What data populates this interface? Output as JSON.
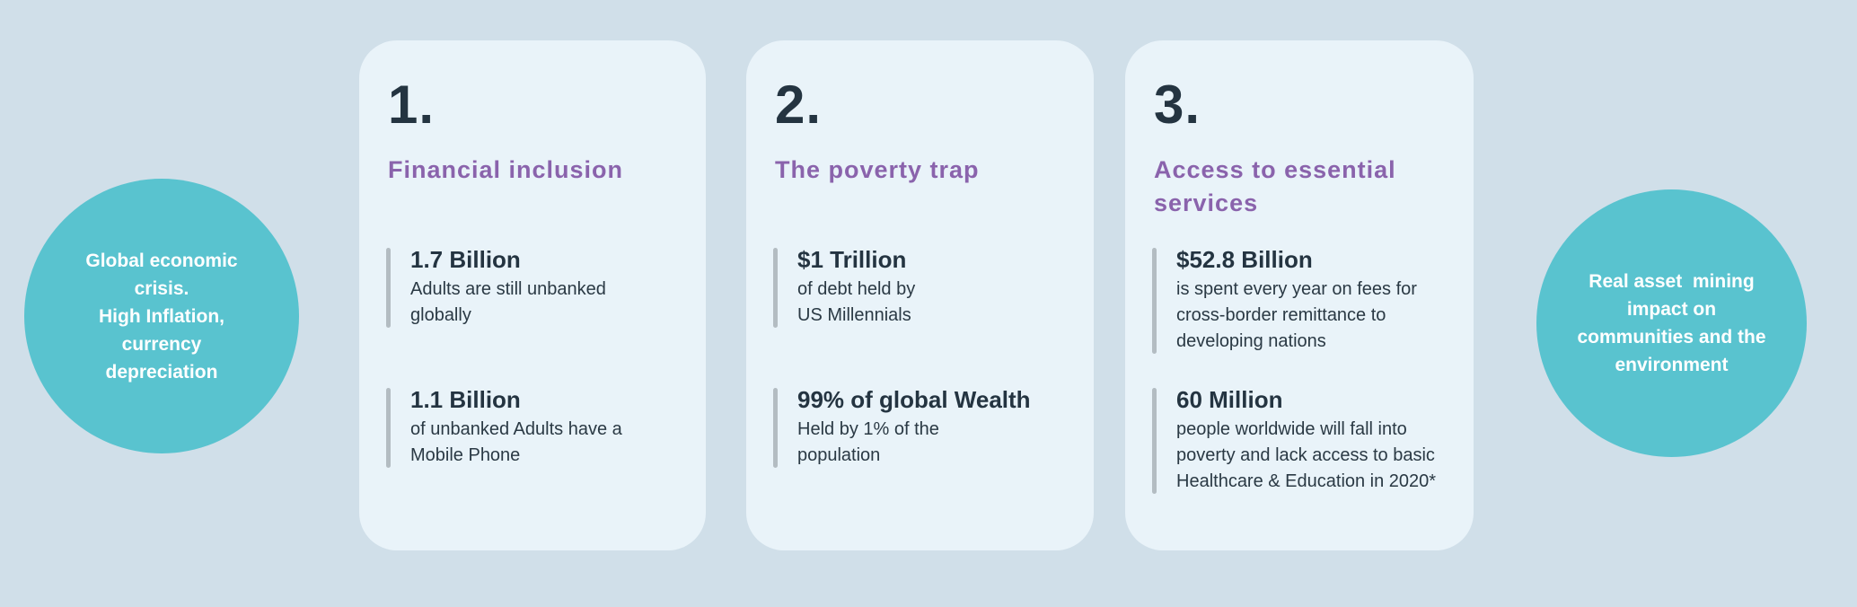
{
  "colors": {
    "background": "#d0dfe9",
    "card_background": "#e9f3f9",
    "bubble_teal": "#59c3cf",
    "title_purple": "#8a63ac",
    "text_dark": "#243441",
    "stat_bar_gray": "#b3bcc2"
  },
  "left_bubble": {
    "lines": [
      "Global economic",
      "crisis.",
      "High Inflation,",
      "currency",
      "depreciation"
    ]
  },
  "right_bubble": {
    "lines": [
      "Real asset  mining",
      "impact on",
      "communities and the",
      "environment"
    ]
  },
  "cards": [
    {
      "number": "1.",
      "title": "Financial inclusion",
      "stats": [
        {
          "value": "1.7 Billion",
          "description": "Adults are still unbanked\nglobally"
        },
        {
          "value": "1.1 Billion",
          "description": "of unbanked Adults have a\nMobile Phone"
        }
      ]
    },
    {
      "number": "2.",
      "title": "The poverty trap",
      "stats": [
        {
          "value": "$1 Trillion",
          "description": "of debt held by\nUS Millennials"
        },
        {
          "value": "99% of global Wealth",
          "description": "Held by 1% of the\npopulation"
        }
      ]
    },
    {
      "number": "3.",
      "title": "Access to essential\nservices",
      "stats": [
        {
          "value": "$52.8 Billion",
          "description": "is spent every year on fees for\ncross-border remittance to\ndeveloping nations"
        },
        {
          "value": "60 Million",
          "description": "people worldwide will fall into\npoverty and lack access to basic\nHealthcare & Education in 2020*"
        }
      ]
    }
  ]
}
